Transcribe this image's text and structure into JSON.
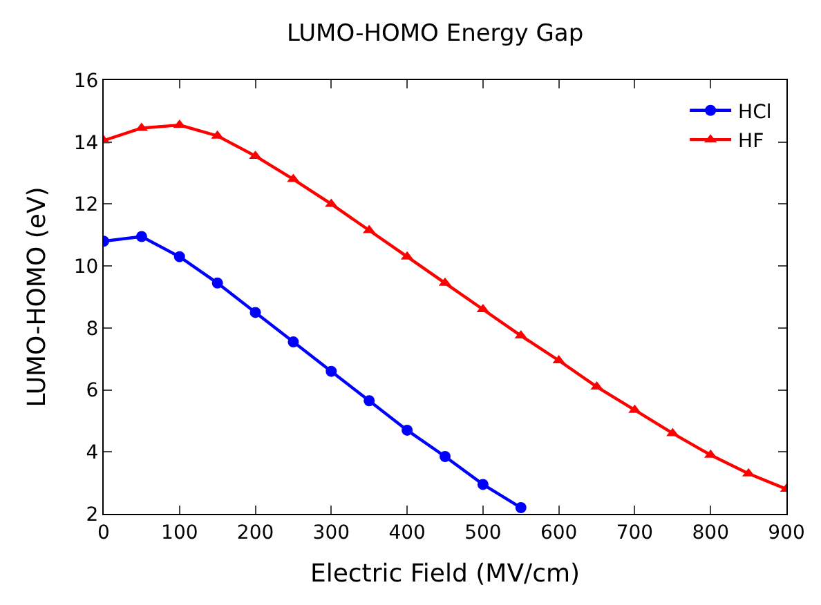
{
  "chart_data": {
    "type": "line",
    "title": "LUMO-HOMO Energy Gap",
    "xlabel": "Electric Field (MV/cm)",
    "ylabel": "LUMO-HOMO (eV)",
    "xlim": [
      0,
      900
    ],
    "xticks": [
      0,
      100,
      200,
      300,
      400,
      500,
      600,
      700,
      800,
      900
    ],
    "ylim": [
      2,
      16
    ],
    "yticks": [
      2,
      4,
      6,
      8,
      10,
      12,
      14,
      16
    ],
    "legend": "top right",
    "series": [
      {
        "name": "HCl",
        "color": "#0000ff",
        "marker": "circle",
        "x": [
          0,
          50,
          100,
          150,
          200,
          250,
          300,
          350,
          400,
          450,
          500,
          550
        ],
        "values": [
          10.8,
          10.95,
          10.3,
          9.45,
          8.5,
          7.55,
          6.6,
          5.65,
          4.7,
          3.85,
          2.95,
          2.2
        ]
      },
      {
        "name": "HF",
        "color": "#ff0000",
        "marker": "triangle",
        "x": [
          0,
          50,
          100,
          150,
          200,
          250,
          300,
          350,
          400,
          450,
          500,
          550,
          600,
          650,
          700,
          750,
          800,
          850,
          900
        ],
        "values": [
          14.05,
          14.45,
          14.55,
          14.2,
          13.55,
          12.8,
          12.0,
          11.15,
          10.3,
          9.45,
          8.6,
          7.75,
          6.95,
          6.1,
          5.35,
          4.6,
          3.9,
          3.3,
          2.8
        ]
      }
    ]
  }
}
